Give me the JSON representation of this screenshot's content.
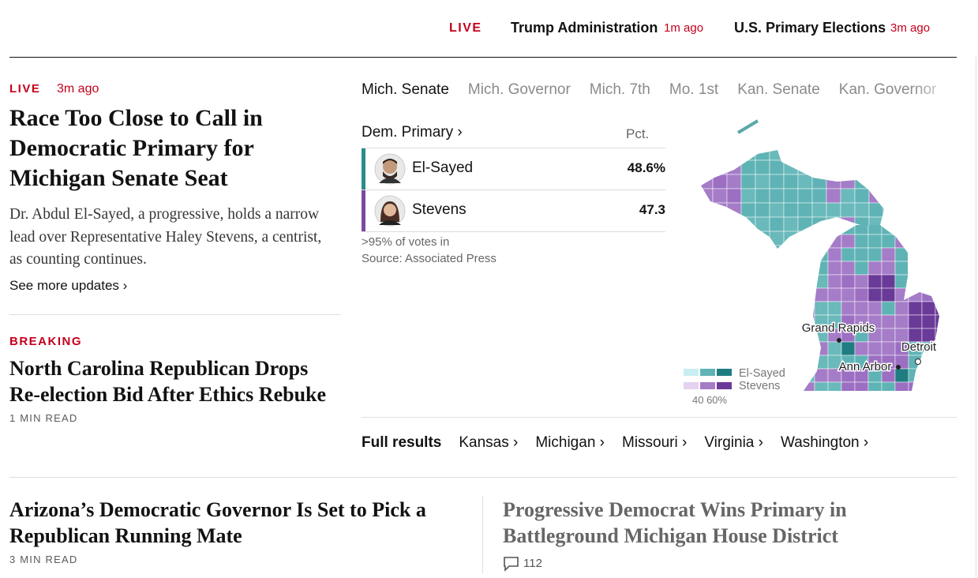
{
  "top_nav": {
    "live": "LIVE",
    "items": [
      {
        "title": "Trump Administration",
        "time": "1m ago"
      },
      {
        "title": "U.S. Primary Elections",
        "time": "3m ago"
      }
    ]
  },
  "lead_story": {
    "label": "LIVE",
    "time": "3m ago",
    "headline": "Race Too Close to Call in Democratic Primary for Michigan Senate Seat",
    "summary": "Dr. Abdul El-Sayed, a progressive, holds a narrow lead over Representative Haley Stevens, a centrist, as counting continues.",
    "link": "See more updates ›"
  },
  "breaking_story": {
    "label": "BREAKING",
    "headline": "North Carolina Republican Drops Re-election Bid After Ethics Rebuke",
    "read_time": "1 MIN READ"
  },
  "results": {
    "tabs": [
      "Mich. Senate",
      "Mich. Governor",
      "Mich. 7th",
      "Mo. 1st",
      "Kan. Senate",
      "Kan. Governor"
    ],
    "race": "Dem. Primary ›",
    "pct_header": "Pct.",
    "candidates": [
      {
        "name": "El-Sayed",
        "pct": "48.6%"
      },
      {
        "name": "Stevens",
        "pct": "47.3"
      }
    ],
    "note": ">95% of votes in",
    "source": "Source: Associated Press",
    "map": {
      "cities": [
        "Grand Rapids",
        "Detroit",
        "Ann Arbor"
      ],
      "legend": [
        "El-Sayed",
        "Stevens"
      ],
      "scale": "40 60%"
    },
    "full_results": {
      "label": "Full results",
      "links": [
        "Kansas ›",
        "Michigan ›",
        "Missouri ›",
        "Virginia ›",
        "Washington ›"
      ]
    }
  },
  "bottom_stories": [
    {
      "headline": "Arizona’s Democratic Governor Is Set to Pick a Republican Running Mate",
      "read_time": "3 MIN READ"
    },
    {
      "headline": "Progressive Democrat Wins Primary in Battleground Michigan House District",
      "comments": "112"
    }
  ]
}
